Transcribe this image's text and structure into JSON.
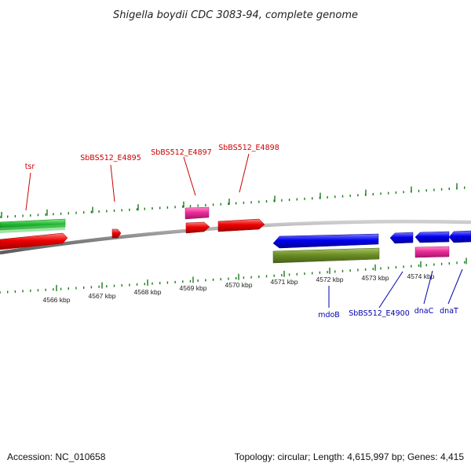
{
  "title": "Shigella boydii CDC 3083-94, complete genome",
  "footer": {
    "accession": "Accession: NC_010658",
    "summary": "Topology: circular; Length: 4,615,997 bp; Genes: 4,415"
  },
  "scale_labels": [
    "4566 kbp",
    "4567 kbp",
    "4568 kbp",
    "4569 kbp",
    "4570 kbp",
    "4571 kbp",
    "4572 kbp",
    "4573 kbp",
    "4574 kbp"
  ],
  "gene_labels_top": [
    "tsr",
    "SbBS512_E4895",
    "SbBS512_E4897",
    "SbBS512_E4898"
  ],
  "gene_labels_bottom": [
    "mdoB",
    "SbBS512_E4900",
    "dnaC",
    "dnaT"
  ],
  "colors": {
    "forward_cds": "#ee0000",
    "reverse_cds": "#0000ee",
    "gene_green": "#22bb33",
    "olive": "#6b8e23",
    "pink": "#ee2a9a",
    "ticks": "#1a7a1a",
    "label_red": "#cc0000",
    "label_blue": "#0000aa",
    "backbone": "#8c8c8c"
  }
}
